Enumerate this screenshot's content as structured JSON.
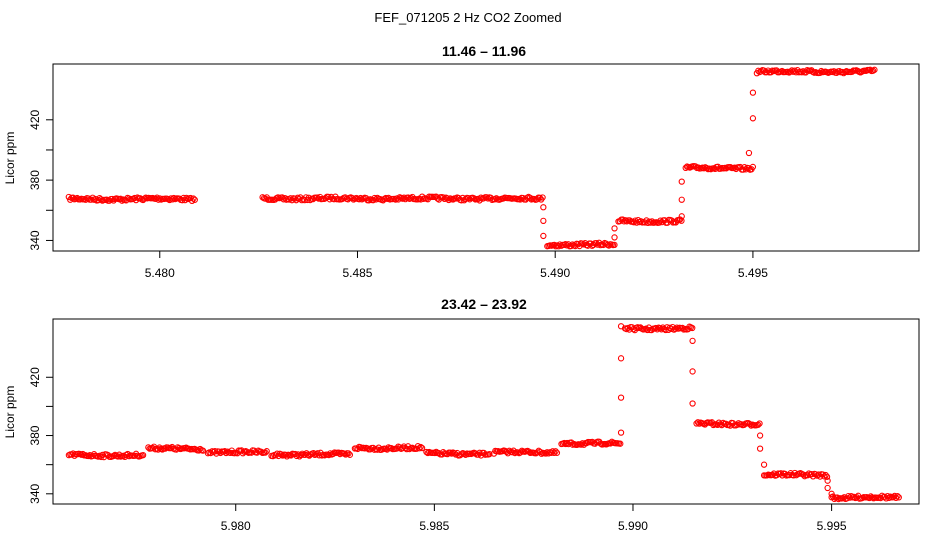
{
  "figure_title": "FEF_071205  2 Hz CO2 Zoomed",
  "colors": {
    "points": "#ff0000",
    "axes": "#000000",
    "background": "#ffffff"
  },
  "chart_data": [
    {
      "type": "scatter",
      "title": "11.46 – 11.96",
      "xlabel": "",
      "ylabel": "Licor ppm",
      "xlim": [
        5.4773,
        5.4992
      ],
      "ylim": [
        333,
        457
      ],
      "xticks": [
        5.48,
        5.485,
        5.49,
        5.495
      ],
      "xtick_labels": [
        "5.480",
        "5.485",
        "5.490",
        "5.495"
      ],
      "yticks": [
        340,
        380,
        420
      ],
      "ytick_labels": [
        "340",
        "380",
        "420"
      ],
      "grid": false,
      "marker": "open-circle",
      "plateaus": [
        {
          "x_start": 5.4777,
          "x_end": 5.4809,
          "y": 367.5
        },
        {
          "x_start": 5.4826,
          "x_end": 5.4897,
          "y": 367.8
        },
        {
          "x_start": 5.4898,
          "x_end": 5.4915,
          "y": 337.2
        },
        {
          "x_start": 5.4916,
          "x_end": 5.4932,
          "y": 352.8
        },
        {
          "x_start": 5.4933,
          "x_end": 5.495,
          "y": 388.0
        },
        {
          "x_start": 5.4951,
          "x_end": 5.4981,
          "y": 452.0
        }
      ],
      "transitions": [
        {
          "x": 5.4897,
          "y": 362
        },
        {
          "x": 5.4897,
          "y": 353
        },
        {
          "x": 5.4897,
          "y": 343
        },
        {
          "x": 5.4915,
          "y": 342
        },
        {
          "x": 5.4915,
          "y": 348
        },
        {
          "x": 5.4932,
          "y": 356
        },
        {
          "x": 5.4932,
          "y": 367
        },
        {
          "x": 5.4932,
          "y": 379
        },
        {
          "x": 5.4949,
          "y": 398
        },
        {
          "x": 5.495,
          "y": 421
        },
        {
          "x": 5.495,
          "y": 438
        }
      ]
    },
    {
      "type": "scatter",
      "title": "23.42 – 23.92",
      "xlabel": "",
      "ylabel": "Licor ppm",
      "xlim": [
        5.9754,
        5.9972
      ],
      "ylim": [
        333,
        460
      ],
      "xticks": [
        5.98,
        5.985,
        5.99,
        5.995
      ],
      "xtick_labels": [
        "5.980",
        "5.985",
        "5.990",
        "5.995"
      ],
      "yticks": [
        340,
        380,
        420
      ],
      "ytick_labels": [
        "340",
        "380",
        "420"
      ],
      "grid": false,
      "marker": "open-circle",
      "plateaus": [
        {
          "x_start": 5.9758,
          "x_end": 5.9777,
          "y": 366.5
        },
        {
          "x_start": 5.9778,
          "x_end": 5.9792,
          "y": 371.0
        },
        {
          "x_start": 5.9793,
          "x_end": 5.9808,
          "y": 368.5
        },
        {
          "x_start": 5.9809,
          "x_end": 5.9829,
          "y": 367.0
        },
        {
          "x_start": 5.983,
          "x_end": 5.9847,
          "y": 371.5
        },
        {
          "x_start": 5.9848,
          "x_end": 5.9864,
          "y": 367.5
        },
        {
          "x_start": 5.9865,
          "x_end": 5.9881,
          "y": 368.5
        },
        {
          "x_start": 5.9882,
          "x_end": 5.9897,
          "y": 374.5
        },
        {
          "x_start": 5.9898,
          "x_end": 5.9915,
          "y": 453.5
        },
        {
          "x_start": 5.9916,
          "x_end": 5.9932,
          "y": 388.0
        },
        {
          "x_start": 5.9933,
          "x_end": 5.9949,
          "y": 353.0
        },
        {
          "x_start": 5.995,
          "x_end": 5.9967,
          "y": 337.5
        }
      ],
      "transitions": [
        {
          "x": 5.9897,
          "y": 382
        },
        {
          "x": 5.9897,
          "y": 406
        },
        {
          "x": 5.9897,
          "y": 433
        },
        {
          "x": 5.9897,
          "y": 455
        },
        {
          "x": 5.9915,
          "y": 445
        },
        {
          "x": 5.9915,
          "y": 424
        },
        {
          "x": 5.9915,
          "y": 402
        },
        {
          "x": 5.9932,
          "y": 380
        },
        {
          "x": 5.9932,
          "y": 371
        },
        {
          "x": 5.9933,
          "y": 360
        },
        {
          "x": 5.9949,
          "y": 349
        },
        {
          "x": 5.9949,
          "y": 344
        },
        {
          "x": 5.995,
          "y": 340
        }
      ]
    }
  ]
}
